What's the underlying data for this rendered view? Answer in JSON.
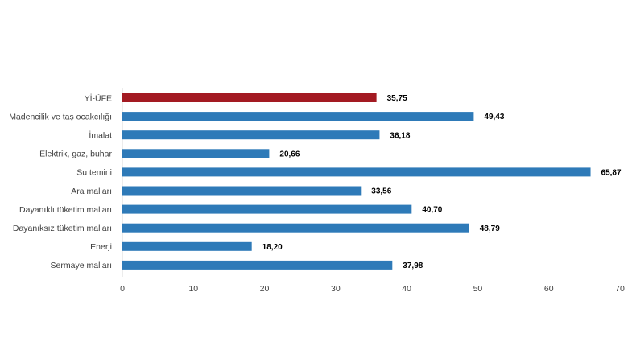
{
  "chart_data": {
    "type": "bar",
    "orientation": "horizontal",
    "title": "",
    "xlabel": "",
    "ylabel": "",
    "categories": [
      "Yİ-ÜFE",
      "Madencilik ve taş ocakcılığı",
      "İmalat",
      "Elektrik, gaz, buhar",
      "Su temini",
      "Ara malları",
      "Dayanıklı tüketim malları",
      "Dayanıksız tüketim malları",
      "Enerji",
      "Sermaye malları"
    ],
    "values": [
      35.75,
      49.43,
      36.18,
      20.66,
      65.87,
      33.56,
      40.7,
      48.79,
      18.2,
      37.98
    ],
    "value_labels": [
      "35,75",
      "49,43",
      "36,18",
      "20,66",
      "65,87",
      "33,56",
      "40,70",
      "48,79",
      "18,20",
      "37,98"
    ],
    "xlim": [
      0,
      70
    ],
    "xticks": [
      0,
      10,
      20,
      30,
      40,
      50,
      60,
      70
    ],
    "grid": false,
    "legend": "none",
    "colors": {
      "highlight": "#a31a22",
      "default": "#2e7ab8",
      "axis": "#d9d9d9"
    },
    "highlight_index": 0
  }
}
